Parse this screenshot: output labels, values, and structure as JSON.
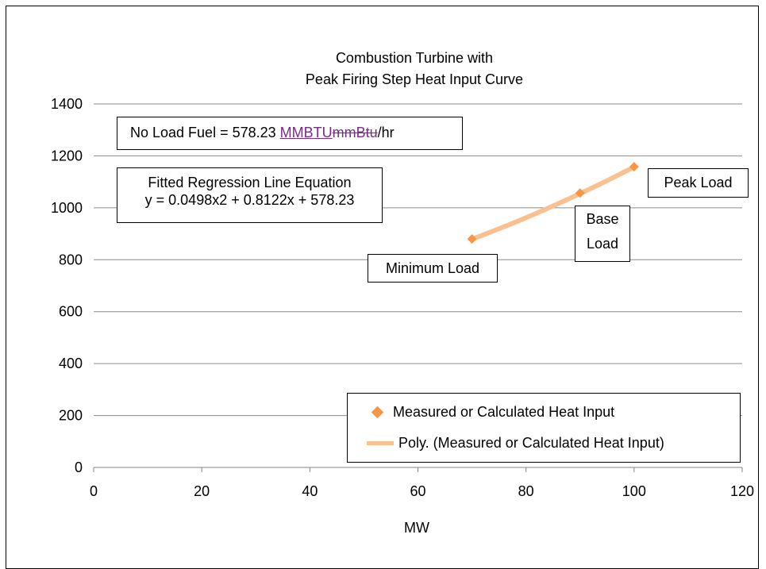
{
  "chart_data": {
    "type": "scatter",
    "title_lines": [
      "Combustion Turbine with",
      "Peak Firing Step Heat Input Curve"
    ],
    "xlabel": "MW",
    "ylabel": "",
    "xlim": [
      0,
      120
    ],
    "ylim": [
      0,
      1400
    ],
    "x_ticks": [
      0,
      20,
      40,
      60,
      80,
      100,
      120
    ],
    "y_ticks": [
      0,
      200,
      400,
      600,
      800,
      1000,
      1200,
      1400
    ],
    "grid": "horizontal",
    "series": [
      {
        "name": "Measured or Calculated Heat Input",
        "kind": "markers",
        "color": "#f79646",
        "marker": "diamond",
        "x": [
          70,
          90,
          100
        ],
        "y": [
          880,
          1057,
          1158
        ]
      },
      {
        "name": "Poly. (Measured or Calculated Heat Input)",
        "kind": "trendline",
        "color": "#fac090",
        "coefficients": [
          0.0498,
          0.8122,
          578.23
        ],
        "x_range": [
          70,
          100
        ]
      }
    ],
    "legend_position": "bottom-right",
    "annotations": {
      "no_load_prefix": "No Load Fuel = 578.23 ",
      "no_load_inserted": "MMBTU",
      "no_load_deleted": "mmBtu",
      "no_load_suffix": "/hr",
      "equation_title": "Fitted Regression Line Equation",
      "equation": "y = 0.0498x2 + 0.8122x + 578.23",
      "minimum_load": "Minimum Load",
      "base_load_line1": "Base",
      "base_load_line2": "Load",
      "peak_load": "Peak Load"
    }
  }
}
